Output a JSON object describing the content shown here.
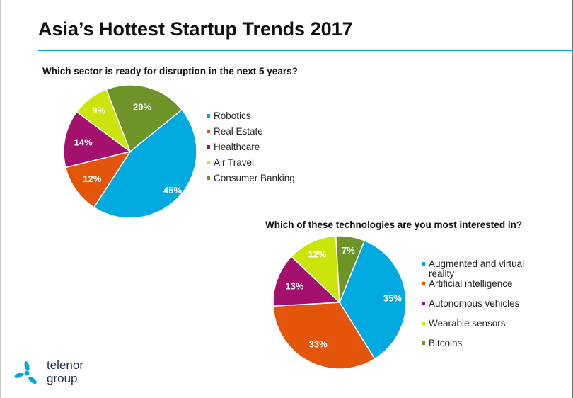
{
  "title": "Asia’s Hottest Startup Trends 2017",
  "logo": {
    "line1": "telenor",
    "line2": "group",
    "color": "#00a9e0"
  },
  "chart_data": [
    {
      "type": "pie",
      "title": "Which sector is ready for disruption in the next 5 years?",
      "categories": [
        "Robotics",
        "Real Estate",
        "Healthcare",
        "Air Travel",
        "Consumer Banking"
      ],
      "values": [
        45,
        12,
        14,
        9,
        20
      ],
      "data_labels": [
        "45%",
        "12%",
        "14%",
        "9%",
        "20%"
      ],
      "colors": [
        "#00a9e0",
        "#e2550a",
        "#a3106e",
        "#cbe40c",
        "#6e9329"
      ],
      "legend_position": "right"
    },
    {
      "type": "pie",
      "title": "Which of these technologies are you most interested in?",
      "categories": [
        "Augmented and virtual reality",
        "Artificial intelligence",
        "Autonomous vehicles",
        "Wearable sensors",
        "Bitcoins"
      ],
      "values": [
        35,
        33,
        13,
        12,
        7
      ],
      "data_labels": [
        "35%",
        "33%",
        "13%",
        "12%",
        "7%"
      ],
      "colors": [
        "#00a9e0",
        "#e2550a",
        "#a3106e",
        "#cbe40c",
        "#6e9329"
      ],
      "legend_position": "right"
    }
  ]
}
